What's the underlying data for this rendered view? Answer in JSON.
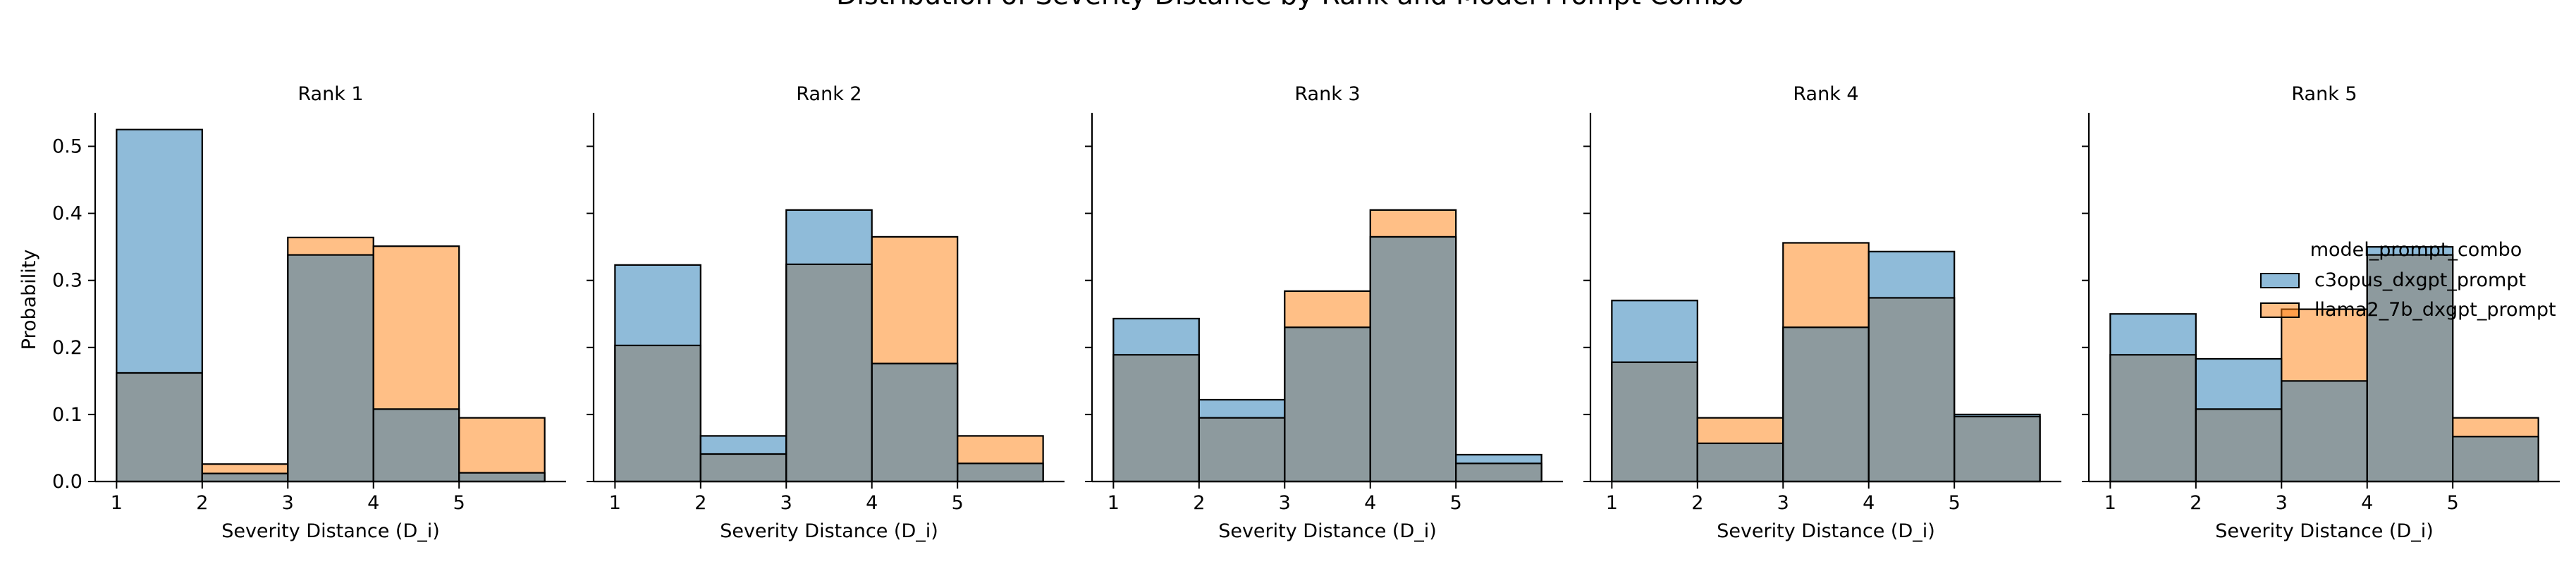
{
  "chart_data": {
    "type": "bar",
    "title": "Distribution of Severity Distance by Rank and Model Prompt Combo",
    "xlabel": "Severity Distance (D_i)",
    "ylabel": "Probability",
    "xticks": [
      1,
      2,
      3,
      4,
      5
    ],
    "yticks": [
      0.0,
      0.1,
      0.2,
      0.3,
      0.4,
      0.5
    ],
    "tick_labels_y": [
      "0.0",
      "0.1",
      "0.2",
      "0.3",
      "0.4",
      "0.5"
    ],
    "ylim": [
      0,
      0.55
    ],
    "xlim": [
      0.75,
      6.25
    ],
    "bin_edges": [
      1,
      2,
      3,
      4,
      5,
      6
    ],
    "series_colors": [
      "#1f77b4",
      "#ff7f0e"
    ],
    "overlap_color": "#8d9a9e",
    "legend": {
      "title": "model_prompt_combo",
      "placement": "right",
      "entries": [
        "c3opus_dxgpt_prompt",
        "llama2_7b_dxgpt_prompt"
      ]
    },
    "panels": [
      {
        "title": "Rank 1",
        "series": [
          {
            "name": "c3opus_dxgpt_prompt",
            "values": [
              0.525,
              0.012,
              0.338,
              0.108,
              0.013
            ]
          },
          {
            "name": "llama2_7b_dxgpt_prompt",
            "values": [
              0.162,
              0.026,
              0.364,
              0.351,
              0.095
            ]
          }
        ]
      },
      {
        "title": "Rank 2",
        "series": [
          {
            "name": "c3opus_dxgpt_prompt",
            "values": [
              0.323,
              0.068,
              0.405,
              0.176,
              0.027
            ]
          },
          {
            "name": "llama2_7b_dxgpt_prompt",
            "values": [
              0.203,
              0.041,
              0.324,
              0.365,
              0.068
            ]
          }
        ]
      },
      {
        "title": "Rank 3",
        "series": [
          {
            "name": "c3opus_dxgpt_prompt",
            "values": [
              0.243,
              0.122,
              0.23,
              0.365,
              0.04
            ]
          },
          {
            "name": "llama2_7b_dxgpt_prompt",
            "values": [
              0.189,
              0.095,
              0.284,
              0.405,
              0.027
            ]
          }
        ]
      },
      {
        "title": "Rank 4",
        "series": [
          {
            "name": "c3opus_dxgpt_prompt",
            "values": [
              0.27,
              0.057,
              0.23,
              0.343,
              0.1
            ]
          },
          {
            "name": "llama2_7b_dxgpt_prompt",
            "values": [
              0.178,
              0.095,
              0.356,
              0.274,
              0.097
            ]
          }
        ]
      },
      {
        "title": "Rank 5",
        "series": [
          {
            "name": "c3opus_dxgpt_prompt",
            "values": [
              0.25,
              0.183,
              0.15,
              0.35,
              0.067
            ]
          },
          {
            "name": "llama2_7b_dxgpt_prompt",
            "values": [
              0.189,
              0.108,
              0.257,
              0.338,
              0.095
            ]
          }
        ]
      }
    ]
  }
}
